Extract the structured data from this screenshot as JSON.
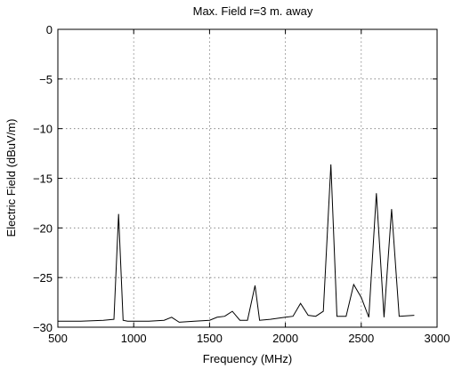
{
  "chart_data": {
    "type": "line",
    "title": "Max. Field r=3 m. away",
    "xlabel": "Frequency (MHz)",
    "ylabel": "Electric Field (dBuV/m)",
    "xlim": [
      500,
      3000
    ],
    "ylim": [
      -30,
      0
    ],
    "xticks": [
      500,
      1000,
      1500,
      2000,
      2500,
      3000
    ],
    "yticks": [
      0,
      -5,
      -10,
      -15,
      -20,
      -25,
      -30
    ],
    "grid": true,
    "series": [
      {
        "color": "#000000",
        "x": [
          500,
          650,
          800,
          870,
          900,
          930,
          960,
          1100,
          1200,
          1250,
          1300,
          1400,
          1500,
          1550,
          1600,
          1650,
          1700,
          1750,
          1800,
          1830,
          1900,
          2000,
          2050,
          2100,
          2150,
          2200,
          2250,
          2300,
          2340,
          2400,
          2450,
          2500,
          2550,
          2600,
          2650,
          2700,
          2750,
          2850
        ],
        "y": [
          -29.4,
          -29.4,
          -29.3,
          -29.2,
          -18.6,
          -29.3,
          -29.4,
          -29.4,
          -29.3,
          -29.0,
          -29.5,
          -29.4,
          -29.3,
          -29.0,
          -28.9,
          -28.4,
          -29.3,
          -29.3,
          -25.8,
          -29.3,
          -29.2,
          -29.0,
          -28.9,
          -27.6,
          -28.8,
          -28.9,
          -28.4,
          -13.6,
          -28.9,
          -28.9,
          -25.7,
          -27.0,
          -29.0,
          -16.5,
          -29.0,
          -18.1,
          -28.9,
          -28.8
        ]
      }
    ]
  }
}
